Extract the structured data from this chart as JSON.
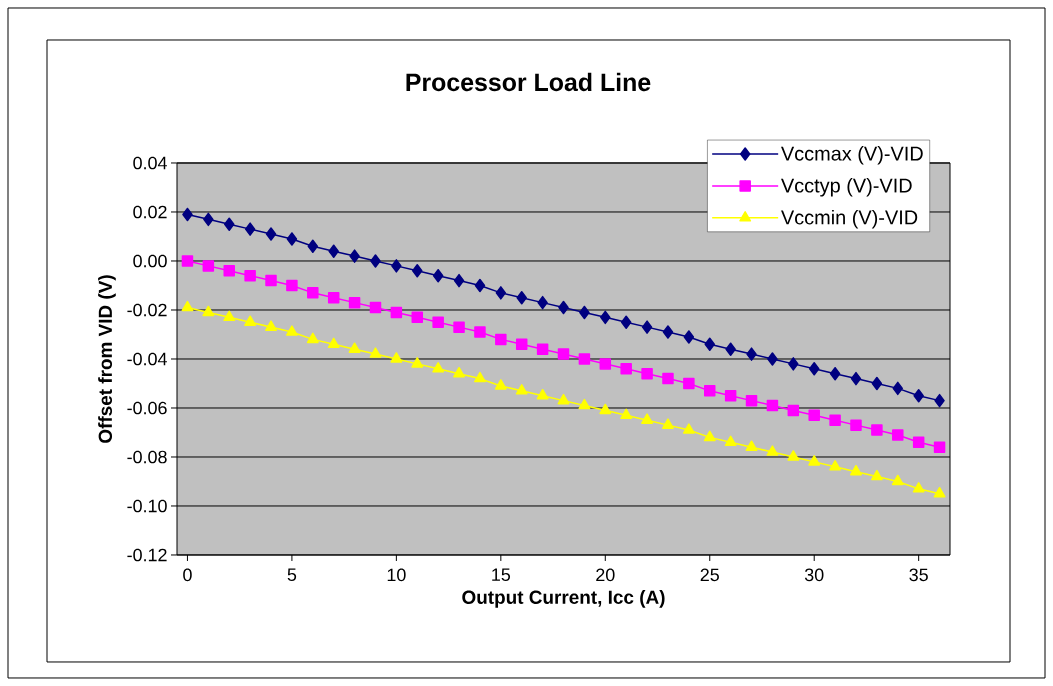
{
  "chart_data": {
    "type": "line",
    "title": "Processor Load Line",
    "xlabel": "Output Current, Icc (A)",
    "ylabel": "Offset from VID (V)",
    "x": [
      0,
      1,
      2,
      3,
      4,
      5,
      6,
      7,
      8,
      9,
      10,
      11,
      12,
      13,
      14,
      15,
      16,
      17,
      18,
      19,
      20,
      21,
      22,
      23,
      24,
      25,
      26,
      27,
      28,
      29,
      30,
      31,
      32,
      33,
      34,
      35,
      36
    ],
    "series": [
      {
        "name": "Vccmax (V)-VID",
        "color": "#000080",
        "marker": "diamond",
        "values": [
          0.019,
          0.017,
          0.015,
          0.013,
          0.011,
          0.009,
          0.006,
          0.004,
          0.002,
          0.0,
          -0.002,
          -0.004,
          -0.006,
          -0.008,
          -0.01,
          -0.013,
          -0.015,
          -0.017,
          -0.019,
          -0.021,
          -0.023,
          -0.025,
          -0.027,
          -0.029,
          -0.031,
          -0.034,
          -0.036,
          -0.038,
          -0.04,
          -0.042,
          -0.044,
          -0.046,
          -0.048,
          -0.05,
          -0.052,
          -0.055,
          -0.057
        ]
      },
      {
        "name": "Vcctyp (V)-VID",
        "color": "#ff00ff",
        "marker": "square",
        "values": [
          0.0,
          -0.002,
          -0.004,
          -0.006,
          -0.008,
          -0.01,
          -0.013,
          -0.015,
          -0.017,
          -0.019,
          -0.021,
          -0.023,
          -0.025,
          -0.027,
          -0.029,
          -0.032,
          -0.034,
          -0.036,
          -0.038,
          -0.04,
          -0.042,
          -0.044,
          -0.046,
          -0.048,
          -0.05,
          -0.053,
          -0.055,
          -0.057,
          -0.059,
          -0.061,
          -0.063,
          -0.065,
          -0.067,
          -0.069,
          -0.071,
          -0.074,
          -0.076
        ]
      },
      {
        "name": "Vccmin (V)-VID",
        "color": "#ffff00",
        "marker": "triangle",
        "values": [
          -0.019,
          -0.021,
          -0.023,
          -0.025,
          -0.027,
          -0.029,
          -0.032,
          -0.034,
          -0.036,
          -0.038,
          -0.04,
          -0.042,
          -0.044,
          -0.046,
          -0.048,
          -0.051,
          -0.053,
          -0.055,
          -0.057,
          -0.059,
          -0.061,
          -0.063,
          -0.065,
          -0.067,
          -0.069,
          -0.072,
          -0.074,
          -0.076,
          -0.078,
          -0.08,
          -0.082,
          -0.084,
          -0.086,
          -0.088,
          -0.09,
          -0.093,
          -0.095
        ]
      }
    ],
    "xlim": [
      -0.5,
      36.5
    ],
    "xticks": [
      0,
      5,
      10,
      15,
      20,
      25,
      30,
      35
    ],
    "ylim": [
      -0.12,
      0.04
    ],
    "yticks": [
      {
        "value": -0.12,
        "label": "-0.12"
      },
      {
        "value": -0.1,
        "label": "-0.10"
      },
      {
        "value": -0.08,
        "label": "-0.08"
      },
      {
        "value": -0.06,
        "label": "-0.06"
      },
      {
        "value": -0.04,
        "label": "-0.04"
      },
      {
        "value": -0.02,
        "label": "-0.02"
      },
      {
        "value": 0,
        "label": "0.00"
      },
      {
        "value": 0.02,
        "label": "0.02"
      },
      {
        "value": 0.04,
        "label": "0.04"
      }
    ],
    "grid": "y",
    "legend": "top right",
    "line_style": "solid"
  }
}
